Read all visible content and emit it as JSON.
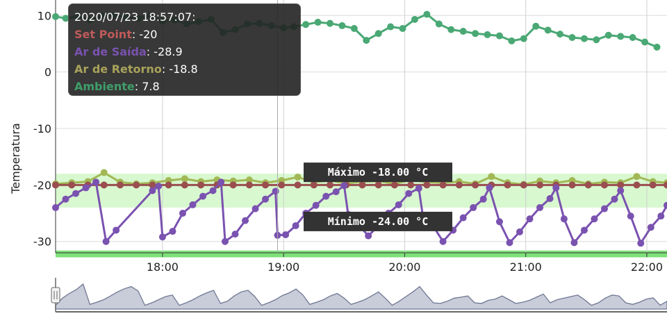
{
  "chart_data": {
    "type": "line",
    "ylabel": "Temperatura",
    "ylim": [
      -32,
      12
    ],
    "yticks": [
      10,
      0,
      -10,
      -20,
      -30
    ],
    "x_start": "17:07",
    "x_end": "22:10",
    "xticks": [
      "18:00",
      "19:00",
      "20:00",
      "21:00",
      "22:00"
    ],
    "vertical_marker": "18:57",
    "grid": true,
    "bands": [
      {
        "from": -24,
        "to": -18,
        "color": "#d8f8d0"
      },
      {
        "from": -31.6,
        "to": -32.8,
        "color": "#7ee07a"
      }
    ],
    "reference_labels": [
      {
        "text": "Máximo -18.00 °C",
        "y": -18
      },
      {
        "text": "Mínimo -24.00 °C",
        "y": -24
      }
    ],
    "tooltip": {
      "title": "2020/07/23 18:57:07:",
      "rows": [
        {
          "name": "Set Point",
          "value": "-20",
          "color": "#c05a5a"
        },
        {
          "name": "Ar de Saída",
          "value": "-28.9",
          "color": "#7a52b0"
        },
        {
          "name": "Ar de Retorno",
          "value": "-18.8",
          "color": "#a8a35a"
        },
        {
          "name": "Ambiente",
          "value": "7.8",
          "color": "#3f9e6a"
        }
      ]
    },
    "series": [
      {
        "name": "Ambiente",
        "color": "#4aa874",
        "points": [
          [
            "17:07",
            9.8
          ],
          [
            "17:12",
            9.5
          ],
          [
            "17:18",
            9.8
          ],
          [
            "17:24",
            9.2
          ],
          [
            "17:30",
            9.9
          ],
          [
            "17:36",
            10
          ],
          [
            "17:42",
            9.7
          ],
          [
            "17:48",
            9.5
          ],
          [
            "17:54",
            9.9
          ],
          [
            "18:00",
            9
          ],
          [
            "18:06",
            9.2
          ],
          [
            "18:12",
            8.5
          ],
          [
            "18:18",
            8.9
          ],
          [
            "18:24",
            9.3
          ],
          [
            "18:30",
            7
          ],
          [
            "18:36",
            7.5
          ],
          [
            "18:42",
            8.5
          ],
          [
            "18:48",
            8.6
          ],
          [
            "18:54",
            8.2
          ],
          [
            "19:00",
            7.8
          ],
          [
            "19:05",
            8
          ],
          [
            "19:11",
            8.4
          ],
          [
            "19:17",
            8.8
          ],
          [
            "19:23",
            8.6
          ],
          [
            "19:29",
            8.2
          ],
          [
            "19:35",
            7.7
          ],
          [
            "19:41",
            5.6
          ],
          [
            "19:47",
            6.8
          ],
          [
            "19:53",
            8
          ],
          [
            "19:59",
            7.7
          ],
          [
            "20:05",
            9.3
          ],
          [
            "20:11",
            10.2
          ],
          [
            "20:17",
            8.5
          ],
          [
            "20:23",
            7.5
          ],
          [
            "20:29",
            7.2
          ],
          [
            "20:35",
            6.8
          ],
          [
            "20:41",
            6.6
          ],
          [
            "20:47",
            6.4
          ],
          [
            "20:53",
            5.5
          ],
          [
            "20:59",
            5.9
          ],
          [
            "21:05",
            8.1
          ],
          [
            "21:11",
            7.4
          ],
          [
            "21:17",
            6.7
          ],
          [
            "21:23",
            6.1
          ],
          [
            "21:29",
            5.9
          ],
          [
            "21:35",
            5.7
          ],
          [
            "21:41",
            6.5
          ],
          [
            "21:47",
            6.3
          ],
          [
            "21:53",
            6.1
          ],
          [
            "21:59",
            5.3
          ],
          [
            "22:05",
            4.4
          ]
        ]
      },
      {
        "name": "Ar de Retorno",
        "color": "#a2b855",
        "points": [
          [
            "17:07",
            -19.8
          ],
          [
            "17:15",
            -19.6
          ],
          [
            "17:23",
            -19.4
          ],
          [
            "17:31",
            -17.8
          ],
          [
            "17:39",
            -19.5
          ],
          [
            "17:47",
            -19.8
          ],
          [
            "17:55",
            -19.6
          ],
          [
            "18:03",
            -19.2
          ],
          [
            "18:11",
            -18.9
          ],
          [
            "18:19",
            -19.4
          ],
          [
            "18:27",
            -19.1
          ],
          [
            "18:35",
            -19.3
          ],
          [
            "18:43",
            -19.1
          ],
          [
            "18:51",
            -19.6
          ],
          [
            "18:59",
            -19.2
          ],
          [
            "19:07",
            -18.6
          ],
          [
            "19:15",
            -19.5
          ],
          [
            "19:23",
            -19.2
          ],
          [
            "19:31",
            -19.7
          ],
          [
            "19:39",
            -19.4
          ],
          [
            "19:47",
            -19.3
          ],
          [
            "19:55",
            -19.8
          ],
          [
            "20:03",
            -19.1
          ],
          [
            "20:11",
            -19.5
          ],
          [
            "20:19",
            -19.6
          ],
          [
            "20:27",
            -19.4
          ],
          [
            "20:35",
            -19.8
          ],
          [
            "20:43",
            -18.5
          ],
          [
            "20:51",
            -19.6
          ],
          [
            "20:59",
            -19.9
          ],
          [
            "21:07",
            -19.3
          ],
          [
            "21:15",
            -19.6
          ],
          [
            "21:23",
            -19.2
          ],
          [
            "21:31",
            -19.8
          ],
          [
            "21:39",
            -19.5
          ],
          [
            "21:47",
            -19.6
          ],
          [
            "21:55",
            -18.5
          ],
          [
            "22:03",
            -19.4
          ],
          [
            "22:10",
            -19.6
          ]
        ]
      },
      {
        "name": "Set Point",
        "color": "#9a4e50",
        "points": [
          [
            "17:07",
            -20
          ],
          [
            "17:15",
            -20
          ],
          [
            "17:23",
            -20
          ],
          [
            "17:31",
            -20
          ],
          [
            "17:39",
            -20
          ],
          [
            "17:47",
            -20
          ],
          [
            "17:55",
            -20
          ],
          [
            "18:03",
            -20
          ],
          [
            "18:11",
            -20
          ],
          [
            "18:19",
            -20
          ],
          [
            "18:27",
            -20
          ],
          [
            "18:35",
            -20
          ],
          [
            "18:43",
            -20
          ],
          [
            "18:51",
            -20
          ],
          [
            "18:59",
            -20
          ],
          [
            "19:07",
            -20
          ],
          [
            "19:15",
            -20
          ],
          [
            "19:23",
            -20
          ],
          [
            "19:31",
            -20
          ],
          [
            "19:39",
            -20
          ],
          [
            "19:47",
            -20
          ],
          [
            "19:55",
            -20
          ],
          [
            "20:03",
            -20
          ],
          [
            "20:11",
            -20
          ],
          [
            "20:19",
            -20
          ],
          [
            "20:27",
            -20
          ],
          [
            "20:35",
            -20
          ],
          [
            "20:43",
            -20
          ],
          [
            "20:51",
            -20
          ],
          [
            "20:59",
            -20
          ],
          [
            "21:07",
            -20
          ],
          [
            "21:15",
            -20
          ],
          [
            "21:23",
            -20
          ],
          [
            "21:31",
            -20
          ],
          [
            "21:39",
            -20
          ],
          [
            "21:47",
            -20
          ],
          [
            "21:55",
            -20
          ],
          [
            "22:03",
            -20
          ],
          [
            "22:10",
            -20
          ]
        ]
      },
      {
        "name": "Ar de Saída",
        "color": "#7a52b0",
        "points": [
          [
            "17:07",
            -24
          ],
          [
            "17:12",
            -22.5
          ],
          [
            "17:17",
            -21.5
          ],
          [
            "17:22",
            -20.5
          ],
          [
            "17:27",
            -19.5
          ],
          [
            "17:32",
            -30
          ],
          [
            "17:37",
            -28
          ],
          [
            "17:55",
            -21
          ],
          [
            "17:58",
            -20.2
          ],
          [
            "18:00",
            -29.2
          ],
          [
            "18:05",
            -28.2
          ],
          [
            "18:10",
            -25
          ],
          [
            "18:15",
            -23.5
          ],
          [
            "18:20",
            -22
          ],
          [
            "18:25",
            -21
          ],
          [
            "18:29",
            -19.5
          ],
          [
            "18:31",
            -30
          ],
          [
            "18:36",
            -28.7
          ],
          [
            "18:41",
            -26.3
          ],
          [
            "18:46",
            -24.2
          ],
          [
            "18:51",
            -22.5
          ],
          [
            "18:56",
            -21.1
          ],
          [
            "18:57",
            -28.9
          ],
          [
            "19:01",
            -28.8
          ],
          [
            "19:06",
            -27.2
          ],
          [
            "19:11",
            -25
          ],
          [
            "19:16",
            -23.6
          ],
          [
            "19:21",
            -22
          ],
          [
            "19:26",
            -21.2
          ],
          [
            "19:30",
            -20.1
          ],
          [
            "19:32",
            -25.2
          ],
          [
            "19:37",
            -27
          ],
          [
            "19:42",
            -29
          ],
          [
            "19:47",
            -27.2
          ],
          [
            "19:52",
            -25
          ],
          [
            "19:57",
            -23.5
          ],
          [
            "20:02",
            -21.5
          ],
          [
            "20:07",
            -20.6
          ],
          [
            "20:09",
            -25.5
          ],
          [
            "20:14",
            -27.2
          ],
          [
            "20:19",
            -30
          ],
          [
            "20:24",
            -28
          ],
          [
            "20:29",
            -25.8
          ],
          [
            "20:34",
            -24
          ],
          [
            "20:39",
            -22.5
          ],
          [
            "20:42",
            -20.5
          ],
          [
            "20:47",
            -26.5
          ],
          [
            "20:52",
            -30.2
          ],
          [
            "20:57",
            -28.3
          ],
          [
            "21:02",
            -26
          ],
          [
            "21:07",
            -24
          ],
          [
            "21:12",
            -22.4
          ],
          [
            "21:15",
            -20.5
          ],
          [
            "21:19",
            -26
          ],
          [
            "21:24",
            -30.2
          ],
          [
            "21:29",
            -28
          ],
          [
            "21:34",
            -26
          ],
          [
            "21:39",
            -24.2
          ],
          [
            "21:44",
            -22.5
          ],
          [
            "21:47",
            -21
          ],
          [
            "21:52",
            -25.5
          ],
          [
            "21:57",
            -30.3
          ],
          [
            "22:02",
            -27.5
          ],
          [
            "22:07",
            -25.5
          ],
          [
            "22:10",
            -23.6
          ]
        ]
      }
    ],
    "navigator": {
      "values": [
        0.12,
        0.35,
        0.5,
        0.62,
        0.8,
        0.15,
        0.22,
        0.3,
        0.42,
        0.55,
        0.65,
        0.72,
        0.58,
        0.12,
        0.2,
        0.3,
        0.4,
        0.45,
        0.12,
        0.2,
        0.3,
        0.42,
        0.52,
        0.6,
        0.18,
        0.25,
        0.42,
        0.55,
        0.6,
        0.4,
        0.12,
        0.2,
        0.3,
        0.43,
        0.52,
        0.64,
        0.45,
        0.15,
        0.22,
        0.3,
        0.42,
        0.5,
        0.35,
        0.15,
        0.22,
        0.3,
        0.42,
        0.55,
        0.35,
        0.12,
        0.25,
        0.4,
        0.55,
        0.72,
        0.45,
        0.2,
        0.18,
        0.25,
        0.35,
        0.38,
        0.42,
        0.2,
        0.18,
        0.28,
        0.32,
        0.42,
        0.3,
        0.18,
        0.22,
        0.28,
        0.38,
        0.48,
        0.2,
        0.3,
        0.35,
        0.4,
        0.45,
        0.3,
        0.12,
        0.2,
        0.35,
        0.45,
        0.42,
        0.2,
        0.15,
        0.22,
        0.32,
        0.36,
        0.12,
        0.25
      ]
    }
  }
}
